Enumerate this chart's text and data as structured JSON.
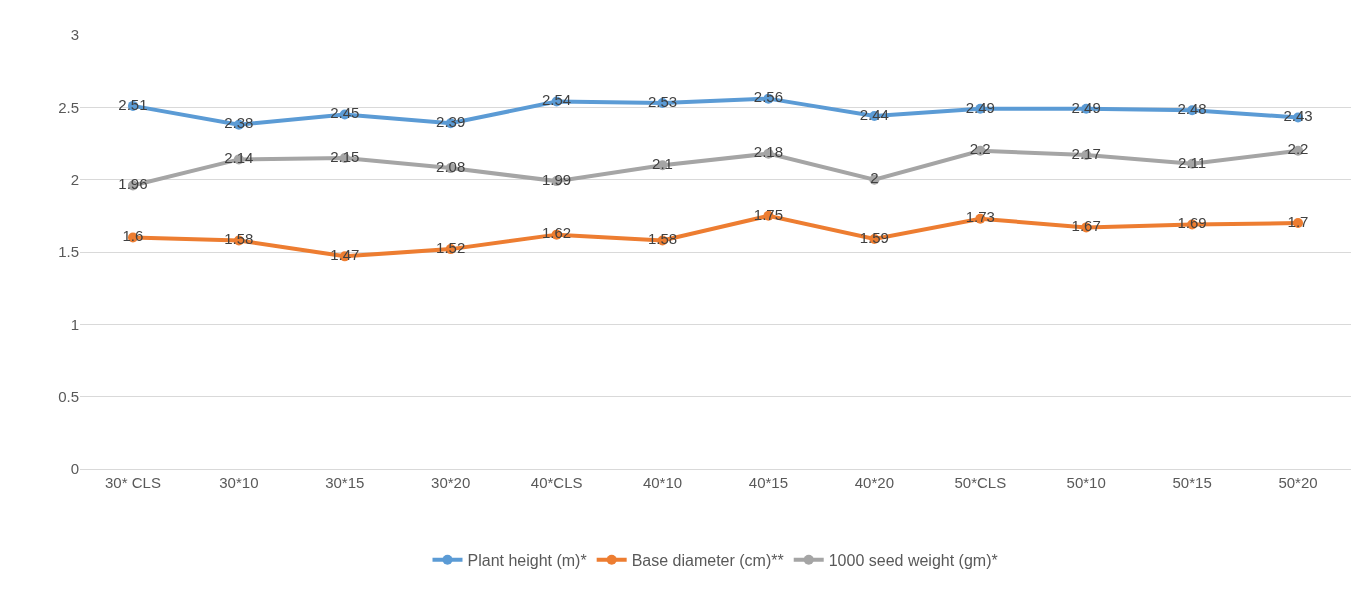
{
  "chart_data": {
    "type": "line",
    "categories": [
      "30* CLS",
      "30*10",
      "30*15",
      "30*20",
      "40*CLS",
      "40*10",
      "40*15",
      "40*20",
      "50*CLS",
      "50*10",
      "50*15",
      "50*20"
    ],
    "series": [
      {
        "name": "Plant height (m)*",
        "color": "#5b9bd5",
        "values": [
          2.51,
          2.38,
          2.45,
          2.39,
          2.54,
          2.53,
          2.56,
          2.44,
          2.49,
          2.49,
          2.48,
          2.43
        ]
      },
      {
        "name": "Base diameter (cm)**",
        "color": "#ed7d31",
        "values": [
          1.6,
          1.58,
          1.47,
          1.52,
          1.62,
          1.58,
          1.75,
          1.59,
          1.73,
          1.67,
          1.69,
          1.7
        ]
      },
      {
        "name": "1000 seed weight (gm)*",
        "color": "#a5a5a5",
        "values": [
          1.96,
          2.14,
          2.15,
          2.08,
          1.99,
          2.1,
          2.18,
          2,
          2.2,
          2.17,
          2.11,
          2.2
        ]
      }
    ],
    "ylim": [
      0,
      3
    ],
    "yticks": [
      0,
      0.5,
      1,
      1.5,
      2,
      2.5,
      3
    ],
    "grid": "y",
    "legend": "bottom",
    "marker": "circle",
    "line_style": "solid",
    "data_labels": true
  }
}
